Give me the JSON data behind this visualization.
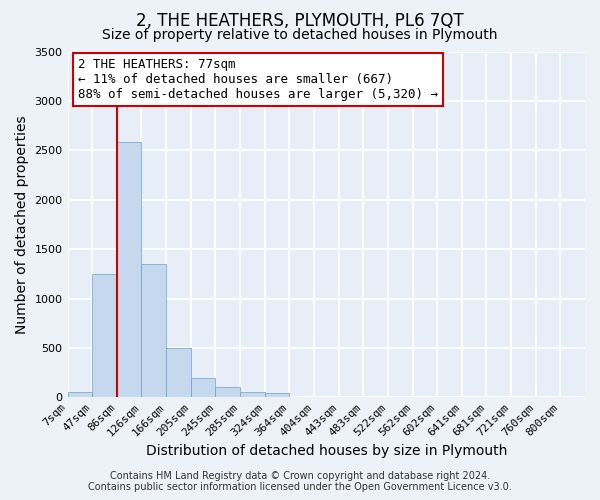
{
  "title": "2, THE HEATHERS, PLYMOUTH, PL6 7QT",
  "subtitle": "Size of property relative to detached houses in Plymouth",
  "xlabel": "Distribution of detached houses by size in Plymouth",
  "ylabel": "Number of detached properties",
  "bar_values": [
    50,
    1250,
    2580,
    1350,
    500,
    200,
    110,
    50,
    40,
    0,
    0,
    0,
    0,
    0,
    0,
    0,
    0,
    0,
    0,
    0
  ],
  "bar_labels": [
    "7sqm",
    "47sqm",
    "86sqm",
    "126sqm",
    "166sqm",
    "205sqm",
    "245sqm",
    "285sqm",
    "324sqm",
    "364sqm",
    "404sqm",
    "443sqm",
    "483sqm",
    "522sqm",
    "562sqm",
    "602sqm",
    "641sqm",
    "681sqm",
    "721sqm",
    "760sqm",
    "800sqm"
  ],
  "bar_color": "#c5d8ed",
  "bar_edge_color": "#6ca0c8",
  "vline_color": "#cc0000",
  "vline_x": 2.0,
  "ylim": [
    0,
    3500
  ],
  "yticks": [
    0,
    500,
    1000,
    1500,
    2000,
    2500,
    3000,
    3500
  ],
  "annotation_title": "2 THE HEATHERS: 77sqm",
  "annotation_line1": "← 11% of detached houses are smaller (667)",
  "annotation_line2": "88% of semi-detached houses are larger (5,320) →",
  "annotation_box_color": "#ffffff",
  "annotation_box_edge": "#cc0000",
  "footer1": "Contains HM Land Registry data © Crown copyright and database right 2024.",
  "footer2": "Contains public sector information licensed under the Open Government Licence v3.0.",
  "bg_color": "#edf2f9",
  "plot_bg_color": "#e8eef7",
  "grid_color": "#ffffff",
  "title_fontsize": 12,
  "subtitle_fontsize": 10,
  "axis_label_fontsize": 10,
  "tick_fontsize": 8,
  "annot_fontsize": 9,
  "footer_fontsize": 7
}
